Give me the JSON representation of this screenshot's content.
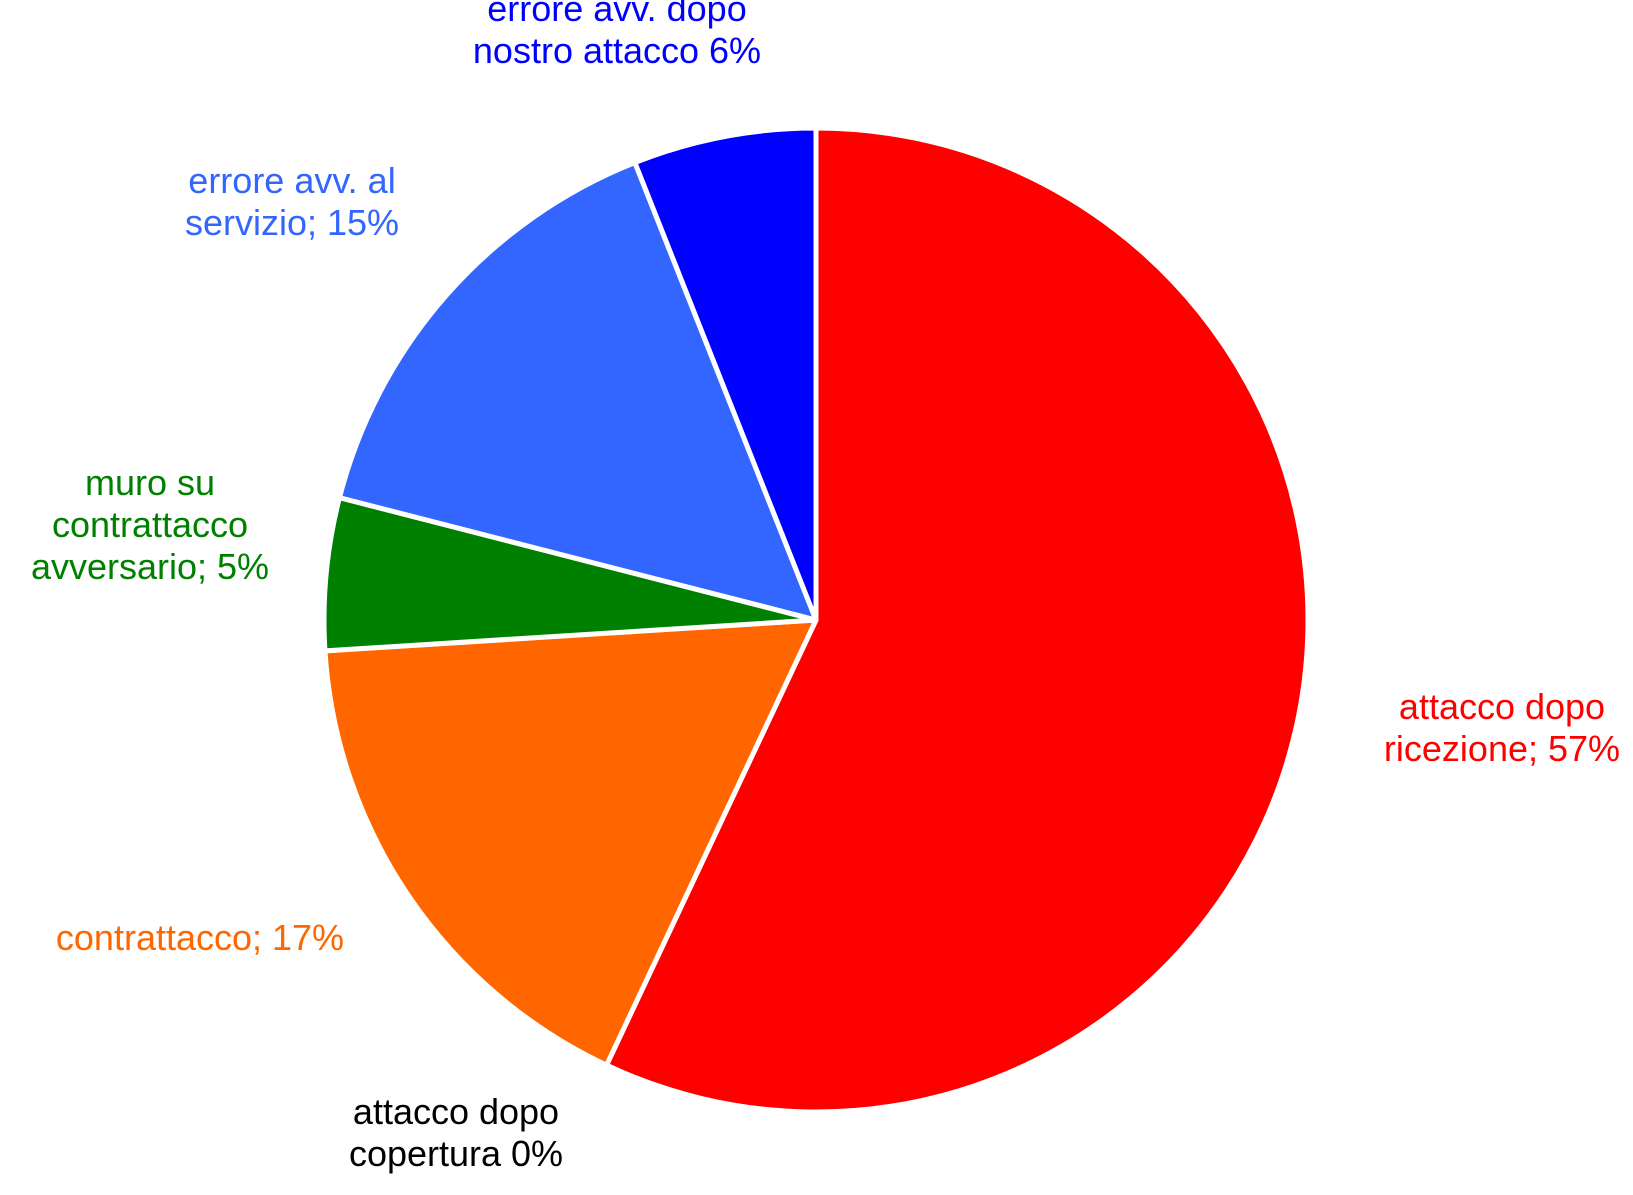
{
  "chart_data": {
    "type": "pie",
    "start_angle_deg": 0,
    "direction": "clockwise",
    "slices": [
      {
        "category": "attacco dopo ricezione",
        "value": 57,
        "color": "#FF0000",
        "label_lines": [
          "attacco dopo",
          "ricezione; 57%"
        ],
        "label_color": "#FF0000"
      },
      {
        "category": "attacco dopo copertura",
        "value": 0,
        "color": "#000000",
        "label_lines": [
          "attacco dopo",
          "copertura 0%"
        ],
        "label_color": "#000000"
      },
      {
        "category": "contrattacco",
        "value": 17,
        "color": "#FF6600",
        "label_lines": [
          "contrattacco; 17%"
        ],
        "label_color": "#FF6600"
      },
      {
        "category": "muro su contrattacco avversario",
        "value": 5,
        "color": "#008000",
        "label_lines": [
          "muro su",
          "contrattacco",
          "avversario; 5%"
        ],
        "label_color": "#008000"
      },
      {
        "category": "errore avv. al servizio",
        "value": 15,
        "color": "#3366FF",
        "label_lines": [
          "errore avv. al",
          "servizio; 15%"
        ],
        "label_color": "#3366FF"
      },
      {
        "category": "errore avv. dopo nostro attacco",
        "value": 6,
        "color": "#0000FF",
        "label_lines": [
          "errore avv. dopo",
          "nostro attacco 6%"
        ],
        "label_color": "#0000FF"
      }
    ]
  }
}
